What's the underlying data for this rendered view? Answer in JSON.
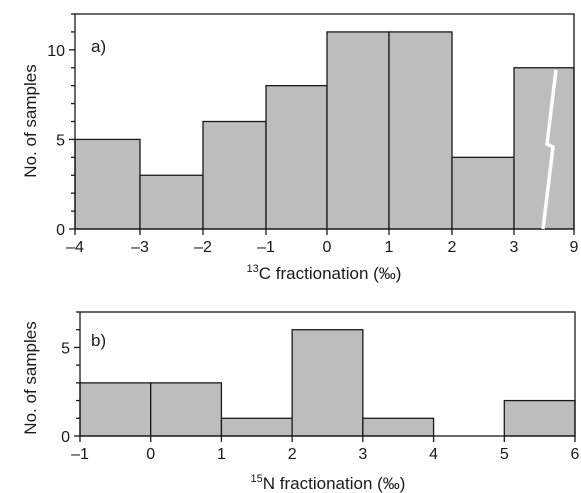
{
  "chart_data": [
    {
      "type": "bar",
      "panel_label": "a)",
      "xlabel_sup": "13",
      "xlabel": "C fractionation (‰)",
      "ylabel": "No. of samples",
      "x_ticks": [
        "–4",
        "–3",
        "–2",
        "–1",
        "0",
        "1",
        "2",
        "3",
        "9"
      ],
      "y_ticks": [
        "0",
        "5",
        "10"
      ],
      "ylim": [
        0,
        12
      ],
      "axis_break": "between 3 and 9",
      "bins": [
        {
          "from": "–4",
          "to": "–3",
          "value": 5
        },
        {
          "from": "–3",
          "to": "–2",
          "value": 3
        },
        {
          "from": "–2",
          "to": "–1",
          "value": 6
        },
        {
          "from": "–1",
          "to": "0",
          "value": 8
        },
        {
          "from": "0",
          "to": "1",
          "value": 11
        },
        {
          "from": "1",
          "to": "2",
          "value": 11
        },
        {
          "from": "2",
          "to": "3",
          "value": 4
        },
        {
          "from": "3",
          "to": "9",
          "value": 9
        }
      ]
    },
    {
      "type": "bar",
      "panel_label": "b)",
      "xlabel_sup": "15",
      "xlabel": "N fractionation (‰)",
      "ylabel": "No. of samples",
      "x_ticks": [
        "–1",
        "0",
        "1",
        "2",
        "3",
        "4",
        "5",
        "6"
      ],
      "y_ticks": [
        "0",
        "5"
      ],
      "ylim": [
        0,
        7
      ],
      "xlim": [
        -1,
        6
      ],
      "bins": [
        {
          "from": -1,
          "to": 0,
          "value": 3
        },
        {
          "from": 0,
          "to": 1,
          "value": 3
        },
        {
          "from": 1,
          "to": 2,
          "value": 1
        },
        {
          "from": 2,
          "to": 3,
          "value": 6
        },
        {
          "from": 3,
          "to": 4,
          "value": 1
        },
        {
          "from": 4,
          "to": 5,
          "value": 0
        },
        {
          "from": 5,
          "to": 6,
          "value": 2
        }
      ]
    }
  ]
}
